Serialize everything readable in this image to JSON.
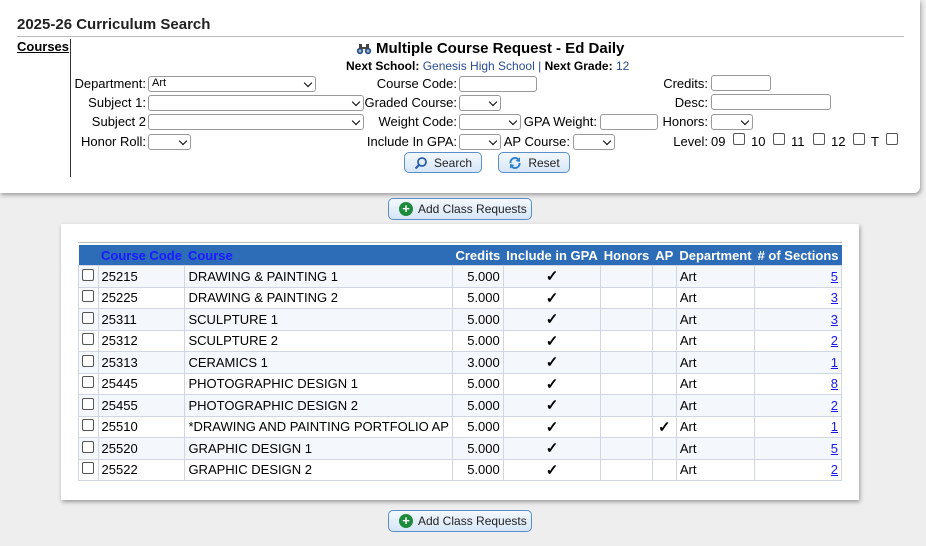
{
  "page_title": "2025-26 Curriculum Search",
  "courses_tab": "Courses",
  "form": {
    "title": "Multiple Course Request - Ed Daily",
    "next_school_label": "Next School:",
    "next_school_value": "Genesis High School",
    "separator": "|",
    "next_grade_label": "Next Grade:",
    "next_grade_value": "12",
    "labels": {
      "department": "Department:",
      "subject1": "Subject 1:",
      "subject2": "Subject 2",
      "honor_roll": "Honor Roll:",
      "course_code": "Course Code:",
      "graded_course": "Graded Course:",
      "weight_code": "Weight Code:",
      "gpa_weight": "GPA Weight:",
      "include_in_gpa": "Include In GPA:",
      "ap_course": "AP Course:",
      "credits": "Credits:",
      "desc": "Desc:",
      "honors": "Honors:",
      "level": "Level:"
    },
    "department_value": "Art",
    "levels": [
      "09",
      "10",
      "11",
      "12",
      "T"
    ],
    "search_label": "Search",
    "reset_label": "Reset"
  },
  "add_class_requests_label": "Add Class Requests",
  "table": {
    "headers": [
      "Course Code",
      "Course",
      "Credits",
      "Include in GPA",
      "Honors",
      "AP",
      "Department",
      "# of Sections"
    ],
    "rows": [
      {
        "code": "25215",
        "course": "DRAWING & PAINTING 1",
        "credits": "5.000",
        "gpa": "✓",
        "honors": "",
        "ap": "",
        "dept": "Art",
        "sections": "5"
      },
      {
        "code": "25225",
        "course": "DRAWING & PAINTING 2",
        "credits": "5.000",
        "gpa": "✓",
        "honors": "",
        "ap": "",
        "dept": "Art",
        "sections": "3"
      },
      {
        "code": "25311",
        "course": "SCULPTURE 1",
        "credits": "5.000",
        "gpa": "✓",
        "honors": "",
        "ap": "",
        "dept": "Art",
        "sections": "3"
      },
      {
        "code": "25312",
        "course": "SCULPTURE 2",
        "credits": "5.000",
        "gpa": "✓",
        "honors": "",
        "ap": "",
        "dept": "Art",
        "sections": "2"
      },
      {
        "code": "25313",
        "course": "CERAMICS 1",
        "credits": "3.000",
        "gpa": "✓",
        "honors": "",
        "ap": "",
        "dept": "Art",
        "sections": "1"
      },
      {
        "code": "25445",
        "course": "PHOTOGRAPHIC DESIGN 1",
        "credits": "5.000",
        "gpa": "✓",
        "honors": "",
        "ap": "",
        "dept": "Art",
        "sections": "8"
      },
      {
        "code": "25455",
        "course": "PHOTOGRAPHIC DESIGN 2",
        "credits": "5.000",
        "gpa": "✓",
        "honors": "",
        "ap": "",
        "dept": "Art",
        "sections": "2"
      },
      {
        "code": "25510",
        "course": "*DRAWING AND PAINTING PORTFOLIO AP",
        "credits": "5.000",
        "gpa": "✓",
        "honors": "",
        "ap": "✓",
        "dept": "Art",
        "sections": "1"
      },
      {
        "code": "25520",
        "course": "GRAPHIC DESIGN 1",
        "credits": "5.000",
        "gpa": "✓",
        "honors": "",
        "ap": "",
        "dept": "Art",
        "sections": "5"
      },
      {
        "code": "25522",
        "course": "GRAPHIC DESIGN 2",
        "credits": "5.000",
        "gpa": "✓",
        "honors": "",
        "ap": "",
        "dept": "Art",
        "sections": "2"
      }
    ]
  }
}
